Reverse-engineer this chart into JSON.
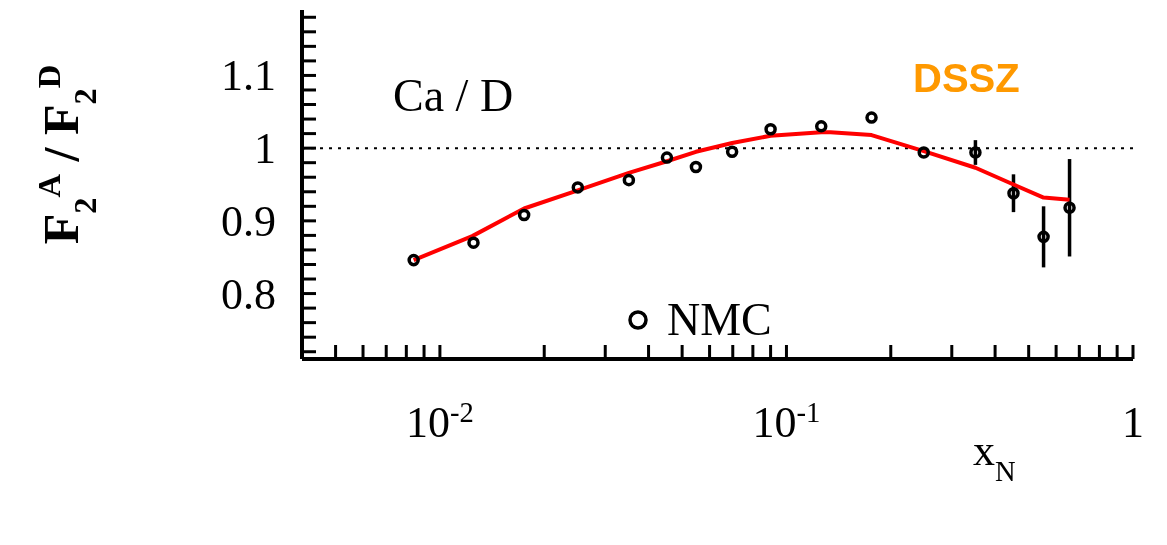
{
  "chart_data": {
    "type": "scatter",
    "xlabel": "x$_{N}$",
    "ylabel": "F$_{2}$$^{A}$ / F$_{2}$$^{D}$",
    "annotations": [
      "Ca / D",
      "DSSZ"
    ],
    "log": "x",
    "xlim": [
      0.004,
      1
    ],
    "ylim": [
      0.71,
      1.19
    ],
    "xticks": [
      {
        "value": 0.004,
        "label": null
      },
      {
        "value": 0.005,
        "label": null
      },
      {
        "value": 0.006,
        "label": null
      },
      {
        "value": 0.007,
        "label": null
      },
      {
        "value": 0.008,
        "label": null
      },
      {
        "value": 0.009,
        "label": null
      },
      {
        "value": 0.01,
        "label": "10$^{-2}$"
      },
      {
        "value": 0.02,
        "label": null
      },
      {
        "value": 0.03,
        "label": null
      },
      {
        "value": 0.04,
        "label": null
      },
      {
        "value": 0.05,
        "label": null
      },
      {
        "value": 0.06,
        "label": null
      },
      {
        "value": 0.07,
        "label": null
      },
      {
        "value": 0.08,
        "label": null
      },
      {
        "value": 0.09,
        "label": null
      },
      {
        "value": 0.1,
        "label": "10$^{-1}$"
      },
      {
        "value": 0.2,
        "label": null
      },
      {
        "value": 0.3,
        "label": null
      },
      {
        "value": 0.4,
        "label": null
      },
      {
        "value": 0.5,
        "label": null
      },
      {
        "value": 0.6,
        "label": null
      },
      {
        "value": 0.7,
        "label": null
      },
      {
        "value": 0.8,
        "label": null
      },
      {
        "value": 0.9,
        "label": null
      },
      {
        "value": 1,
        "label": "1"
      }
    ],
    "yticks": [
      {
        "value": 0.72,
        "label": null
      },
      {
        "value": 0.74,
        "label": null
      },
      {
        "value": 0.76,
        "label": null
      },
      {
        "value": 0.78,
        "label": null
      },
      0.8,
      {
        "value": 0.82,
        "label": null
      },
      {
        "value": 0.84,
        "label": null
      },
      {
        "value": 0.86,
        "label": null
      },
      {
        "value": 0.88,
        "label": null
      },
      0.9,
      {
        "value": 0.92,
        "label": null
      },
      {
        "value": 0.94,
        "label": null
      },
      {
        "value": 0.96,
        "label": null
      },
      {
        "value": 0.98,
        "label": null
      },
      1,
      {
        "value": 1.02,
        "label": null
      },
      {
        "value": 1.04,
        "label": null
      },
      {
        "value": 1.06,
        "label": null
      },
      {
        "value": 1.08,
        "label": null
      },
      1.1,
      {
        "value": 1.12,
        "label": null
      },
      {
        "value": 1.14,
        "label": null
      },
      {
        "value": 1.16,
        "label": null
      },
      {
        "value": 1.18,
        "label": null
      }
    ],
    "ref_lines": [
      {
        "axis": "y",
        "value": 1,
        "line_style": "dotted",
        "color": "#000000"
      }
    ],
    "legend": "bottom",
    "series": [
      {
        "name": "NMC",
        "marker": "circle",
        "color": "#000000",
        "x": [
          0.0084,
          0.0125,
          0.0175,
          0.025,
          0.0351,
          0.0452,
          0.0548,
          0.0697,
          0.09,
          0.126,
          0.176,
          0.249,
          0.351,
          0.452,
          0.552,
          0.656
        ],
        "values": [
          0.846,
          0.87,
          0.908,
          0.946,
          0.956,
          0.987,
          0.974,
          0.995,
          1.026,
          1.03,
          1.042,
          0.994,
          0.994,
          0.938,
          0.878,
          0.918
        ],
        "errors": [
          null,
          null,
          null,
          null,
          null,
          null,
          null,
          null,
          null,
          null,
          null,
          null,
          0.017,
          0.026,
          0.042,
          0.067
        ]
      },
      {
        "type": "line",
        "marker": "none",
        "color": "#ff0000",
        "x": [
          0.0084,
          0.0124,
          0.0175,
          0.025,
          0.0351,
          0.0452,
          0.0548,
          0.0697,
          0.09,
          0.126,
          0.134,
          0.176,
          0.249,
          0.351,
          0.452,
          0.552,
          0.656
        ],
        "values": [
          0.846,
          0.879,
          0.917,
          0.942,
          0.966,
          0.982,
          0.995,
          1.007,
          1.017,
          1.022,
          1.022,
          1.018,
          0.996,
          0.973,
          0.95,
          0.932,
          0.929
        ]
      }
    ]
  }
}
